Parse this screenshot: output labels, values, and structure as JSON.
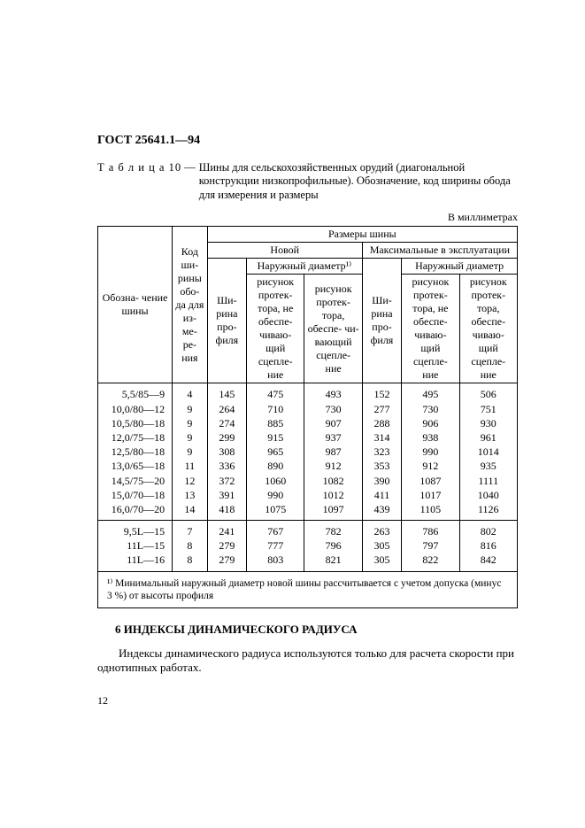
{
  "gost_header": "ГОСТ 25641.1—94",
  "caption_lead": "Т а б л и ц а  10",
  "caption_body": "Шины для сельскохозяйственных орудий (диагональной конструкции низкопрофильные). Обозначение, код ширины обода для измерения и размеры",
  "unit": "В миллиметрах",
  "headers": {
    "designation": "Обозна-\nчение\nшины",
    "rim_code": "Код\nши-\nрины\nобо-\nда\nдля\nиз-\nме-\nре-\nния",
    "tire_dims": "Размеры шины",
    "new": "Новой",
    "max": "Максимальные в\nэксплуатации",
    "width": "Ши-\nрина\nпро-\nфиля",
    "outer_d": "Наружный\nдиаметр",
    "outer_d_fn": "Наружный\nдиаметр¹⁾",
    "tread_no": "рисунок\nпротек-\nтора, не\nобеспе-\nчиваю-\nщий\nсцепле-\nние",
    "tread_yes": "рисунок\nпротек-\nтора,\nобеспе-\nчи-\nвающий\nсцепле-\nние",
    "tread_yes2": "рисунок\nпротек-\nтора,\nобеспе-\nчиваю-\nщий\nсцепле-\nние"
  },
  "group1": [
    {
      "d": "5,5/85—9",
      "c": "4",
      "w1": "145",
      "od1": "475",
      "od2": "493",
      "w2": "152",
      "od3": "495",
      "od4": "506"
    },
    {
      "d": "10,0/80—12",
      "c": "9",
      "w1": "264",
      "od1": "710",
      "od2": "730",
      "w2": "277",
      "od3": "730",
      "od4": "751"
    },
    {
      "d": "10,5/80—18",
      "c": "9",
      "w1": "274",
      "od1": "885",
      "od2": "907",
      "w2": "288",
      "od3": "906",
      "od4": "930"
    },
    {
      "d": "12,0/75—18",
      "c": "9",
      "w1": "299",
      "od1": "915",
      "od2": "937",
      "w2": "314",
      "od3": "938",
      "od4": "961"
    },
    {
      "d": "12,5/80—18",
      "c": "9",
      "w1": "308",
      "od1": "965",
      "od2": "987",
      "w2": "323",
      "od3": "990",
      "od4": "1014"
    },
    {
      "d": "13,0/65—18",
      "c": "11",
      "w1": "336",
      "od1": "890",
      "od2": "912",
      "w2": "353",
      "od3": "912",
      "od4": "935"
    },
    {
      "d": "14,5/75—20",
      "c": "12",
      "w1": "372",
      "od1": "1060",
      "od2": "1082",
      "w2": "390",
      "od3": "1087",
      "od4": "1111"
    },
    {
      "d": "15,0/70—18",
      "c": "13",
      "w1": "391",
      "od1": "990",
      "od2": "1012",
      "w2": "411",
      "od3": "1017",
      "od4": "1040"
    },
    {
      "d": "16,0/70—20",
      "c": "14",
      "w1": "418",
      "od1": "1075",
      "od2": "1097",
      "w2": "439",
      "od3": "1105",
      "od4": "1126"
    }
  ],
  "group2": [
    {
      "d": "9,5L—15",
      "c": "7",
      "w1": "241",
      "od1": "767",
      "od2": "782",
      "w2": "263",
      "od3": "786",
      "od4": "802"
    },
    {
      "d": "11L—15",
      "c": "8",
      "w1": "279",
      "od1": "777",
      "od2": "796",
      "w2": "305",
      "od3": "797",
      "od4": "816"
    },
    {
      "d": "11L—16",
      "c": "8",
      "w1": "279",
      "od1": "803",
      "od2": "821",
      "w2": "305",
      "od3": "822",
      "od4": "842"
    }
  ],
  "footnote": "¹⁾ Минимальный наружный диаметр новой шины рассчитывается с учетом допуска (минус 3 %) от высоты профиля",
  "section_heading": "6 ИНДЕКСЫ ДИНАМИЧЕСКОГО РАДИУСА",
  "paragraph": "Индексы динамического радиуса используются только для расчета скорости при однотипных работах.",
  "page_number": "12",
  "col_widths": [
    "72",
    "30",
    "38",
    "56",
    "56",
    "38",
    "56",
    "56"
  ]
}
